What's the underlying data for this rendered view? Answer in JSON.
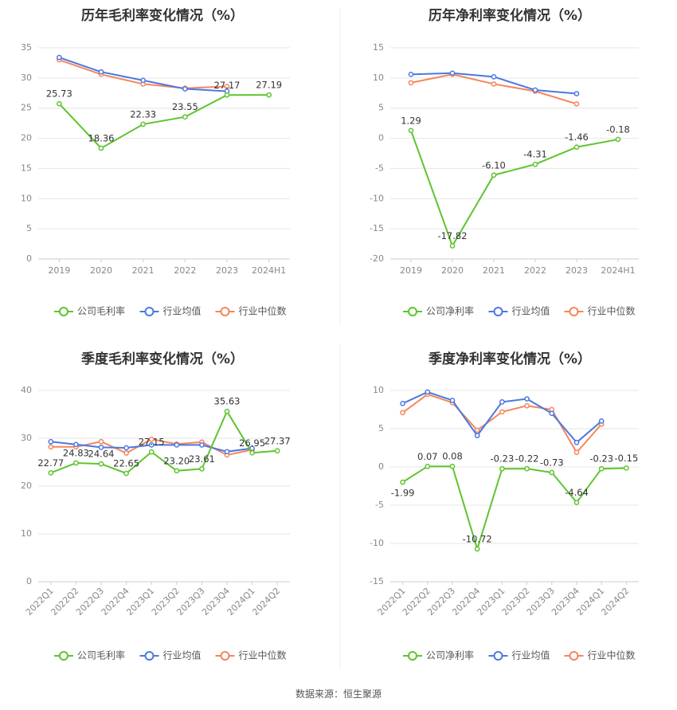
{
  "footer": "数据来源：恒生聚源",
  "colors": {
    "company": "#5ec42f",
    "avg": "#4c78e0",
    "median": "#f5865a",
    "axis": "#888888",
    "grid": "#e6e6e6"
  },
  "legend_icon": "circle-line-marker",
  "chart_data": [
    {
      "type": "line",
      "title": "历年毛利率变化情况（%）",
      "categories": [
        "2019",
        "2020",
        "2021",
        "2022",
        "2023",
        "2024H1"
      ],
      "ylim": [
        0,
        35
      ],
      "yticks": [
        0,
        5,
        10,
        15,
        20,
        25,
        30,
        35
      ],
      "grid": true,
      "legend_position": "bottom",
      "label_series": 0,
      "series": [
        {
          "name": "公司毛利率",
          "color": "#5ec42f",
          "values": [
            25.73,
            18.36,
            22.33,
            23.55,
            27.17,
            27.19
          ],
          "labels": [
            "25.73",
            "18.36",
            "22.33",
            "23.55",
            "27.17",
            "27.19"
          ]
        },
        {
          "name": "行业均值",
          "color": "#4c78e0",
          "values": [
            33.4,
            31.0,
            29.6,
            28.2,
            27.8,
            null
          ]
        },
        {
          "name": "行业中位数",
          "color": "#f5865a",
          "values": [
            33.0,
            30.6,
            29.0,
            28.3,
            28.6,
            null
          ]
        }
      ]
    },
    {
      "type": "line",
      "title": "历年净利率变化情况（%）",
      "categories": [
        "2019",
        "2020",
        "2021",
        "2022",
        "2023",
        "2024H1"
      ],
      "ylim": [
        -20,
        15
      ],
      "yticks": [
        -20,
        -15,
        -10,
        -5,
        0,
        5,
        10,
        15
      ],
      "grid": true,
      "legend_position": "bottom",
      "label_series": 0,
      "series": [
        {
          "name": "公司净利率",
          "color": "#5ec42f",
          "values": [
            1.29,
            -17.82,
            -6.1,
            -4.31,
            -1.46,
            -0.18
          ],
          "labels": [
            "1.29",
            "-17.82",
            "-6.10",
            "-4.31",
            "-1.46",
            "-0.18"
          ]
        },
        {
          "name": "行业均值",
          "color": "#4c78e0",
          "values": [
            10.6,
            10.8,
            10.2,
            8.0,
            7.4,
            null
          ]
        },
        {
          "name": "行业中位数",
          "color": "#f5865a",
          "values": [
            9.2,
            10.6,
            9.0,
            7.8,
            5.7,
            null
          ]
        }
      ]
    },
    {
      "type": "line",
      "title": "季度毛利率变化情况（%）",
      "categories": [
        "2022Q1",
        "2022Q2",
        "2022Q3",
        "2022Q4",
        "2023Q1",
        "2023Q2",
        "2023Q3",
        "2023Q4",
        "2024Q1",
        "2024Q2"
      ],
      "ylim": [
        0,
        40
      ],
      "yticks": [
        0,
        10,
        20,
        30,
        40
      ],
      "grid": true,
      "legend_position": "bottom",
      "rotate_x_labels": true,
      "label_series": 0,
      "series": [
        {
          "name": "公司毛利率",
          "color": "#5ec42f",
          "values": [
            22.77,
            24.83,
            24.64,
            22.65,
            27.15,
            23.2,
            23.61,
            35.63,
            26.95,
            27.37
          ],
          "labels": [
            "22.77",
            "24.83",
            "24.64",
            "22.65",
            "27.15",
            "23.20",
            "23.61",
            "35.63",
            "26.95",
            "27.37"
          ]
        },
        {
          "name": "行业均值",
          "color": "#4c78e0",
          "values": [
            29.3,
            28.7,
            28.1,
            28.0,
            28.6,
            28.6,
            28.6,
            27.2,
            27.9,
            null
          ]
        },
        {
          "name": "行业中位数",
          "color": "#f5865a",
          "values": [
            28.2,
            28.2,
            29.3,
            26.9,
            29.8,
            28.8,
            29.2,
            26.5,
            27.6,
            null
          ]
        }
      ]
    },
    {
      "type": "line",
      "title": "季度净利率变化情况（%）",
      "categories": [
        "2022Q1",
        "2022Q2",
        "2022Q3",
        "2022Q4",
        "2023Q1",
        "2023Q2",
        "2023Q3",
        "2023Q4",
        "2024Q1",
        "2024Q2"
      ],
      "ylim": [
        -15,
        10
      ],
      "yticks": [
        -15,
        -10,
        -5,
        0,
        5,
        10
      ],
      "grid": true,
      "legend_position": "bottom",
      "rotate_x_labels": true,
      "label_series": 0,
      "series": [
        {
          "name": "公司净利率",
          "color": "#5ec42f",
          "values": [
            -1.99,
            0.07,
            0.08,
            -10.72,
            -0.23,
            -0.22,
            -0.73,
            -4.64,
            -0.23,
            -0.15
          ],
          "labels": [
            "-1.99",
            "0.07",
            "0.08",
            "-10.72",
            "-0.23",
            "-0.22",
            "-0.73",
            "-4.64",
            "-0.23",
            "-0.15"
          ]
        },
        {
          "name": "行业均值",
          "color": "#4c78e0",
          "values": [
            8.3,
            9.8,
            8.7,
            4.1,
            8.5,
            8.9,
            7.0,
            3.2,
            6.0,
            null
          ]
        },
        {
          "name": "行业中位数",
          "color": "#f5865a",
          "values": [
            7.1,
            9.5,
            8.4,
            4.8,
            7.2,
            8.0,
            7.5,
            1.9,
            5.6,
            null
          ]
        }
      ]
    }
  ]
}
